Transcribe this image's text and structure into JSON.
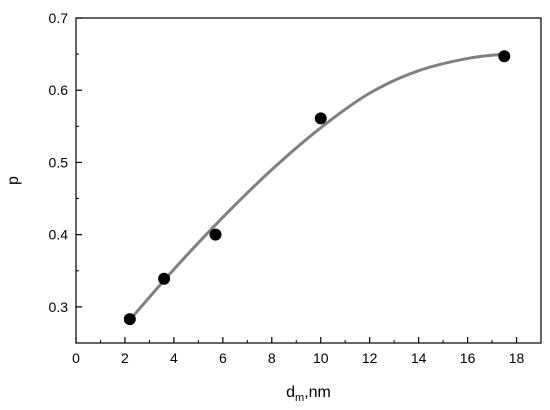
{
  "chart_data": {
    "type": "scatter",
    "xlabel": {
      "main": "d",
      "sub": "m",
      "rest": ",nm"
    },
    "ylabel": "p",
    "xlim": [
      0,
      19
    ],
    "ylim": [
      0.25,
      0.7
    ],
    "xticks": [
      0,
      2,
      4,
      6,
      8,
      10,
      12,
      14,
      16,
      18
    ],
    "yticks": [
      0.3,
      0.4,
      0.5,
      0.6,
      0.7
    ],
    "xtick_labels": [
      "0",
      "2",
      "4",
      "6",
      "8",
      "10",
      "12",
      "14",
      "16",
      "18"
    ],
    "ytick_labels": [
      "0.3",
      "0.4",
      "0.5",
      "0.6",
      "0.7"
    ],
    "points": [
      {
        "x": 2.2,
        "y": 0.283
      },
      {
        "x": 3.6,
        "y": 0.339
      },
      {
        "x": 5.7,
        "y": 0.4
      },
      {
        "x": 10.0,
        "y": 0.561
      },
      {
        "x": 17.5,
        "y": 0.647
      }
    ],
    "fit_curve": {
      "x": [
        2.2,
        4,
        6,
        8,
        10,
        12,
        14,
        16,
        17.5
      ],
      "y": [
        0.282,
        0.352,
        0.424,
        0.49,
        0.548,
        0.596,
        0.627,
        0.644,
        0.65
      ]
    },
    "colors": {
      "points": "#000000",
      "curve": "#808080",
      "axes": "#000000"
    },
    "grid": false,
    "legend": "none"
  }
}
